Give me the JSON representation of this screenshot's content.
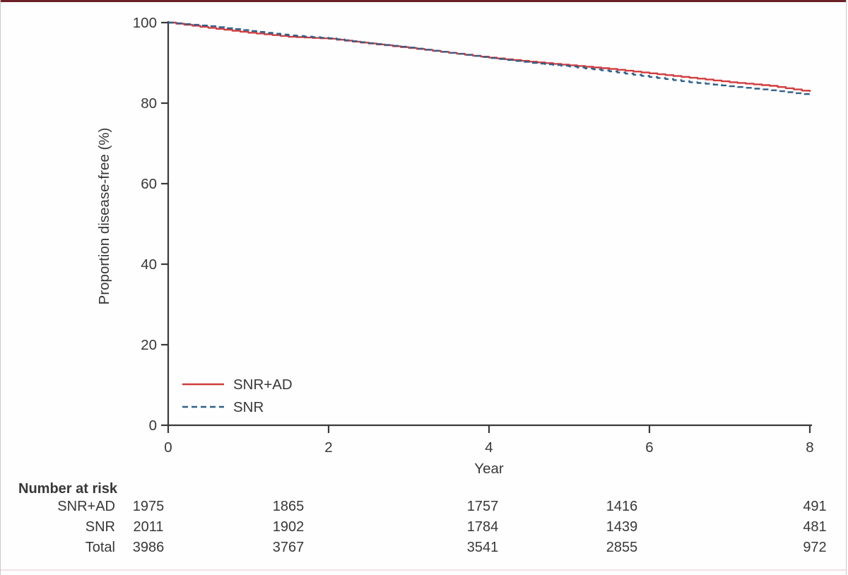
{
  "frame": {
    "top_bar_color": "#6b2126",
    "bottom_bar_color": "#f3e1e5",
    "side_border_color": "#c9c9c9",
    "background": "#ffffff"
  },
  "chart_data": {
    "type": "line",
    "subtype": "kaplan-meier-step",
    "title": "",
    "xlabel": "Year",
    "ylabel": "Proportion disease-free (%)",
    "xlim": [
      0,
      8
    ],
    "ylim": [
      0,
      100
    ],
    "x_ticks": [
      0,
      2,
      4,
      6,
      8
    ],
    "y_ticks": [
      0,
      20,
      40,
      60,
      80,
      100
    ],
    "grid": false,
    "legend_position": "inside-bottom-left",
    "axis_color": "#3a3a3a",
    "text_color": "#383838",
    "x": [
      0,
      0.5,
      1,
      1.5,
      2,
      2.5,
      3,
      3.5,
      4,
      4.5,
      5,
      5.5,
      6,
      6.5,
      7,
      7.5,
      8
    ],
    "series": [
      {
        "name": "SNR+AD",
        "color": "#d13c3e",
        "line_style": "solid",
        "values": [
          100,
          98.7,
          97.5,
          96.5,
          96.0,
          94.8,
          93.7,
          92.5,
          91.3,
          90.3,
          89.4,
          88.5,
          87.4,
          86.3,
          85.2,
          84.3,
          82.8
        ]
      },
      {
        "name": "SNR",
        "color": "#2e618c",
        "line_style": "dashed",
        "values": [
          100,
          99.1,
          97.9,
          96.8,
          96.1,
          94.9,
          93.8,
          92.5,
          91.2,
          90.0,
          89.1,
          87.9,
          86.5,
          85.2,
          84.2,
          83.2,
          82.0
        ]
      }
    ]
  },
  "risk_table": {
    "title": "Number at risk",
    "rows": [
      {
        "label": "SNR+AD",
        "values": [
          "1975",
          "1865",
          "1757",
          "1416",
          "491"
        ]
      },
      {
        "label": "SNR",
        "values": [
          "2011",
          "1902",
          "1784",
          "1439",
          "481"
        ]
      },
      {
        "label": "Total",
        "values": [
          "3986",
          "3767",
          "3541",
          "2855",
          "972"
        ]
      }
    ]
  }
}
